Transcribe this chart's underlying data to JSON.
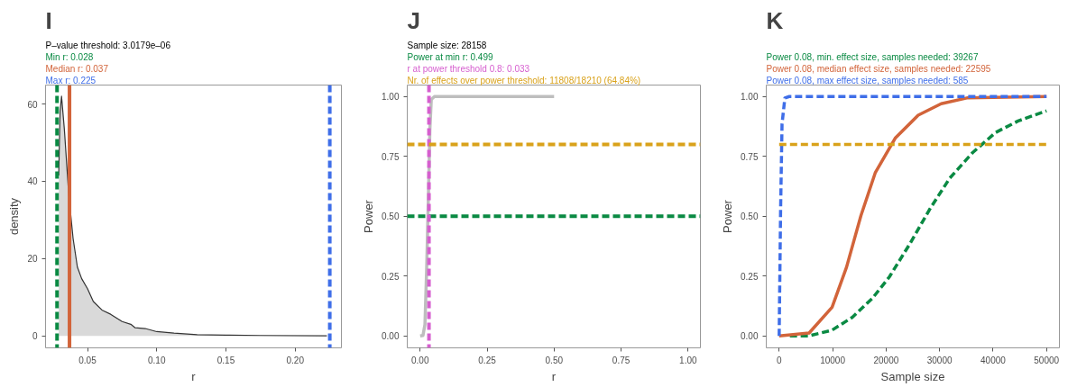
{
  "chart_data": [
    {
      "type": "area",
      "title": "I",
      "subtitle": "P–value threshold: 3.0179e–06",
      "xlabel": "r",
      "ylabel": "density",
      "xlim": [
        0.0197,
        0.2334
      ],
      "ylim": [
        -3.1,
        64.9
      ],
      "xticks": [
        0.05,
        {
          "value": 0.1,
          "label": "0.10"
        },
        0.15,
        {
          "value": 0.2,
          "label": "0.20"
        }
      ],
      "yticks": [
        0,
        20,
        40,
        60
      ],
      "grid": false,
      "series": [
        {
          "color": "#d9d9d9",
          "x": [
            0.0292,
            0.0302,
            0.03125,
            0.0333,
            0.0365,
            0.0396,
            0.0427,
            0.0458,
            0.05,
            0.0542,
            0.0604,
            0.0667,
            0.075,
            0.0813,
            0.0844,
            0.0917,
            0.1,
            0.1125,
            0.1292,
            0.15,
            0.175,
            0.2229
          ],
          "values": [
            41.5,
            58,
            62,
            53.4,
            36.3,
            25.2,
            17.8,
            14.8,
            12.2,
            8.9,
            6.7,
            5.6,
            3.7,
            3.0,
            2.1,
            1.9,
            1.1,
            0.7,
            0.3,
            0.2,
            0.1,
            0
          ]
        }
      ],
      "ref_lines": [
        {
          "axis": "x",
          "value": 0.028,
          "label": "Min r: 0.028",
          "color": "#0a8a43",
          "line_style": "dashed"
        },
        {
          "axis": "x",
          "value": 0.037,
          "label": "Median r: 0.037",
          "color": "#d2643a",
          "line_style": "solid"
        },
        {
          "axis": "x",
          "value": 0.225,
          "label": "Max r: 0.225",
          "color": "#3f6ee8",
          "line_style": "dashed"
        }
      ]
    },
    {
      "type": "line",
      "title": "J",
      "subtitle": "Sample size: 28158",
      "xlabel": "r",
      "ylabel": "Power",
      "xlim": [
        -0.048,
        1.046
      ],
      "ylim": [
        -0.05,
        1.048
      ],
      "xticks": [
        {
          "value": 0,
          "label": "0.00"
        },
        0.25,
        {
          "value": 0.5,
          "label": "0.50"
        },
        0.75,
        {
          "value": 1,
          "label": "1.00"
        }
      ],
      "yticks": [
        {
          "value": 0,
          "label": "0.00"
        },
        0.25,
        {
          "value": 0.5,
          "label": "0.50"
        },
        0.75,
        {
          "value": 1,
          "label": "1.00"
        }
      ],
      "grid": false,
      "series": [
        {
          "color": "#bebebe",
          "line_style": "solid",
          "x": [
            0,
            0.0107,
            0.018,
            0.0246,
            0.031,
            0.0364,
            0.0417,
            0.0535,
            0.5
          ],
          "values": [
            0,
            0.002,
            0.048,
            0.287,
            0.587,
            0.862,
            0.988,
            1.0,
            1.0
          ]
        }
      ],
      "annotations": [
        "Power at min r:  0.499",
        "r at power threshold 0.8:  0.033",
        "Nr. of effects over power threshold: 11808/18210 (64.84%)"
      ],
      "ref_lines": [
        {
          "axis": "y",
          "value": 0.5,
          "color": "#0a8a43",
          "line_style": "dashed"
        },
        {
          "axis": "x",
          "value": 0.033,
          "color": "#d65fcf",
          "line_style": "dashed"
        },
        {
          "axis": "y",
          "value": 0.8,
          "color": "#d9a21b",
          "line_style": "dashed"
        }
      ]
    },
    {
      "type": "line",
      "title": "K",
      "xlabel": "Sample size",
      "ylabel": "Power",
      "legend": "top",
      "xlim": [
        -2412,
        52412
      ],
      "ylim": [
        -0.05,
        1.048
      ],
      "xticks": [
        0,
        10000,
        20000,
        30000,
        40000,
        50000
      ],
      "yticks": [
        {
          "value": 0,
          "label": "0.00"
        },
        0.25,
        {
          "value": 0.5,
          "label": "0.50"
        },
        0.75,
        {
          "value": 1,
          "label": "1.00"
        }
      ],
      "grid": false,
      "series": [
        {
          "name": "Power 0.08, min. effect size, samples needed: 39267",
          "color": "#0a8a43",
          "line_style": "dashed",
          "x": [
            2000,
            5600,
            9900,
            13700,
            17400,
            20600,
            24400,
            28100,
            31900,
            36200,
            40500,
            44700,
            50000
          ],
          "values": [
            0,
            0,
            0.024,
            0.078,
            0.156,
            0.246,
            0.383,
            0.527,
            0.659,
            0.766,
            0.85,
            0.898,
            0.94
          ]
        },
        {
          "name": "Power 0.08, median effect size, samples needed: 22595",
          "color": "#d2643a",
          "line_style": "solid",
          "x": [
            0,
            5600,
            9900,
            12600,
            15300,
            18000,
            21700,
            26000,
            30300,
            35100,
            50000
          ],
          "values": [
            0,
            0.012,
            0.12,
            0.287,
            0.503,
            0.683,
            0.826,
            0.922,
            0.97,
            0.994,
            1
          ]
        },
        {
          "name": "Power 0.08, max effect size, samples needed: 585",
          "color": "#3f6ee8",
          "line_style": "dashed",
          "x": [
            0,
            270,
            540,
            1070,
            1880,
            50000
          ],
          "values": [
            0,
            0.527,
            0.886,
            0.994,
            1,
            1
          ]
        },
        {
          "color": "#d9a21b",
          "line_style": "dashed",
          "x": [
            0,
            50000
          ],
          "values": [
            0.8,
            0.8
          ]
        }
      ]
    }
  ]
}
